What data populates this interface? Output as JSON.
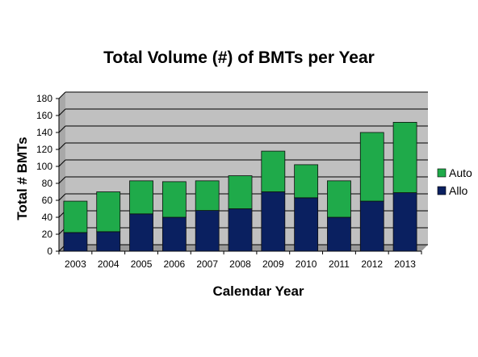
{
  "chart_data": {
    "type": "bar",
    "stacked": true,
    "title": "Total Volume (#) of BMTs per Year",
    "xlabel": "Calendar Year",
    "ylabel": "Total # BMTs",
    "categories": [
      "2003",
      "2004",
      "2005",
      "2006",
      "2007",
      "2008",
      "2009",
      "2010",
      "2011",
      "2012",
      "2013"
    ],
    "ylim": [
      0,
      180
    ],
    "yticks": [
      0,
      20,
      40,
      60,
      80,
      100,
      120,
      140,
      160,
      180
    ],
    "grid": true,
    "legend_position": "right",
    "series": [
      {
        "name": "Allo",
        "color": "#0a2060",
        "values": [
          22,
          23,
          44,
          40,
          48,
          50,
          70,
          63,
          40,
          59,
          69
        ]
      },
      {
        "name": "Auto",
        "color": "#1faa4a",
        "values": [
          37,
          47,
          39,
          42,
          35,
          39,
          48,
          39,
          43,
          81,
          83
        ]
      }
    ],
    "plot_background": "#c0c0c0"
  }
}
